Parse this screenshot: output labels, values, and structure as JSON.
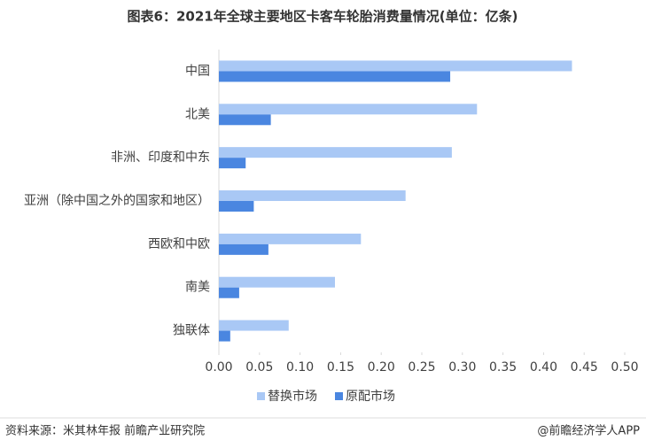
{
  "chart_data": {
    "type": "hbar",
    "title": "图表6：2021年全球主要地区卡客车轮胎消费量情况(单位：亿条)",
    "categories": [
      "中国",
      "北美",
      "非洲、印度和中东",
      "亚洲（除中国之外的国家和地区）",
      "西欧和中欧",
      "南美",
      "独联体"
    ],
    "series": [
      {
        "name": "替换市场",
        "color": "#a9c8f5",
        "values": [
          0.435,
          0.318,
          0.287,
          0.23,
          0.175,
          0.143,
          0.086
        ]
      },
      {
        "name": "原配市场",
        "color": "#4a86e0",
        "values": [
          0.285,
          0.064,
          0.033,
          0.043,
          0.061,
          0.025,
          0.014
        ]
      }
    ],
    "xlim": [
      0,
      0.5
    ],
    "xticks": [
      {
        "value": 0,
        "label": "0.00"
      },
      0.05,
      {
        "value": 0.1,
        "label": "0.10"
      },
      0.15,
      {
        "value": 0.2,
        "label": "0.20"
      },
      0.25,
      {
        "value": 0.3,
        "label": "0.30"
      },
      0.35,
      {
        "value": 0.4,
        "label": "0.40"
      },
      0.45,
      {
        "value": 0.5,
        "label": "0.50"
      }
    ],
    "legend": "bottom",
    "source": "资料来源：米其林年报 前瞻产业研究院",
    "credit": "@前瞻经济学人APP"
  }
}
